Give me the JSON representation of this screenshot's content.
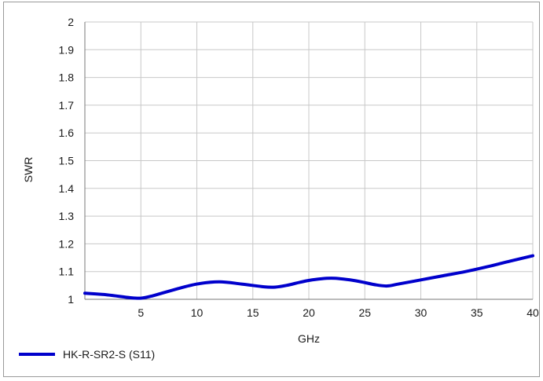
{
  "chart_data": {
    "type": "line",
    "xlabel": "GHz",
    "ylabel": "SWR",
    "xlim": [
      0,
      40
    ],
    "ylim": [
      1,
      2
    ],
    "x_ticks": [
      5,
      10,
      15,
      20,
      25,
      30,
      35,
      40
    ],
    "y_ticks": [
      1,
      1.1,
      1.2,
      1.3,
      1.4,
      1.5,
      1.6,
      1.7,
      1.8,
      1.9,
      2
    ],
    "x_tick_labels": [
      "5",
      "10",
      "15",
      "20",
      "25",
      "30",
      "35",
      "40"
    ],
    "y_tick_labels": [
      "1",
      "1.1",
      "1.2",
      "1.3",
      "1.4",
      "1.5",
      "1.6",
      "1.7",
      "1.8",
      "1.9",
      "2"
    ],
    "grid": true,
    "legend_position": "bottom-left",
    "series": [
      {
        "name": "HK-R-SR2-S (S11)",
        "color": "#0000cc",
        "x": [
          0,
          2,
          4,
          5,
          6,
          8,
          10,
          12,
          14,
          16,
          17,
          18,
          20,
          22,
          24,
          26,
          27,
          28,
          30,
          32,
          34,
          36,
          38,
          40
        ],
        "y": [
          1.022,
          1.016,
          1.006,
          1.004,
          1.012,
          1.035,
          1.055,
          1.063,
          1.055,
          1.045,
          1.044,
          1.05,
          1.068,
          1.076,
          1.068,
          1.052,
          1.048,
          1.055,
          1.07,
          1.085,
          1.1,
          1.118,
          1.138,
          1.157
        ]
      }
    ]
  }
}
